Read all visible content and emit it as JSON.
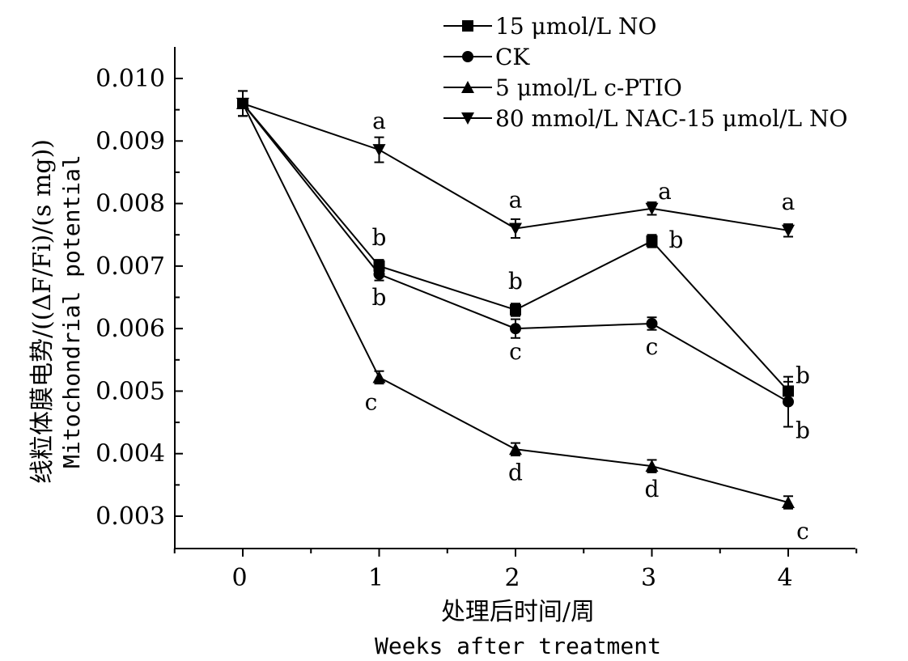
{
  "chart_data": {
    "type": "line",
    "xlabel": "处理后时间/周",
    "xlabel_en": "Weeks after treatment",
    "ylabel": "线粒体膜电势/((ΔF/Fi)/(s mg))",
    "ylabel_en": "Mitochondrial potential",
    "x": [
      0,
      1,
      2,
      3,
      4
    ],
    "x_tick_labels": [
      "0",
      "1",
      "2",
      "3",
      "4"
    ],
    "xlim": [
      -0.5,
      4.5
    ],
    "ylim": [
      0.0025,
      0.0105
    ],
    "y_ticks": [
      0.003,
      0.004,
      0.005,
      0.006,
      0.007,
      0.008,
      0.009,
      0.01
    ],
    "y_tick_labels": [
      "0.003",
      "0.004",
      "0.005",
      "0.006",
      "0.007",
      "0.008",
      "0.009",
      "0.010"
    ],
    "grid": false,
    "legend_position": "top-right",
    "series": [
      {
        "name": "15 μmol/L NO",
        "marker": "square",
        "values": [
          0.0096,
          0.007,
          0.0063,
          0.0074,
          0.005
        ],
        "errors": [
          0.0002,
          0.0001,
          0.0001,
          0.0001,
          0.00015
        ],
        "labels": [
          "",
          "b",
          "b",
          "b",
          "b"
        ],
        "label_pos": [
          "",
          "above",
          "above",
          "right",
          "right-above"
        ]
      },
      {
        "name": "CK",
        "marker": "circle",
        "values": [
          0.0096,
          0.00687,
          0.006,
          0.00608,
          0.00483
        ],
        "errors": [
          0.0002,
          0.0001,
          0.00015,
          0.0001,
          0.0004
        ],
        "labels": [
          "",
          "b",
          "c",
          "c",
          "b"
        ],
        "label_pos": [
          "",
          "below",
          "below",
          "below",
          "right-below"
        ]
      },
      {
        "name": "5 μmol/L c-PTIO",
        "marker": "triangle-up",
        "values": [
          0.0096,
          0.00522,
          0.00407,
          0.0038,
          0.00322
        ],
        "errors": [
          0.0002,
          0.0001,
          0.0001,
          0.0001,
          0.0001
        ],
        "labels": [
          "",
          "c",
          "d",
          "d",
          "c"
        ],
        "label_pos": [
          "",
          "below-left",
          "below",
          "below",
          "right-below"
        ]
      },
      {
        "name": "80 mmol/L NAC-15 μmol/L NO",
        "marker": "triangle-down",
        "values": [
          0.0096,
          0.00886,
          0.0076,
          0.00792,
          0.00757
        ],
        "errors": [
          0.0002,
          0.0002,
          0.00015,
          0.0001,
          0.0001
        ],
        "labels": [
          "",
          "a",
          "a",
          "a",
          "a"
        ],
        "label_pos": [
          "",
          "above",
          "above",
          "above-right",
          "above"
        ]
      }
    ]
  }
}
